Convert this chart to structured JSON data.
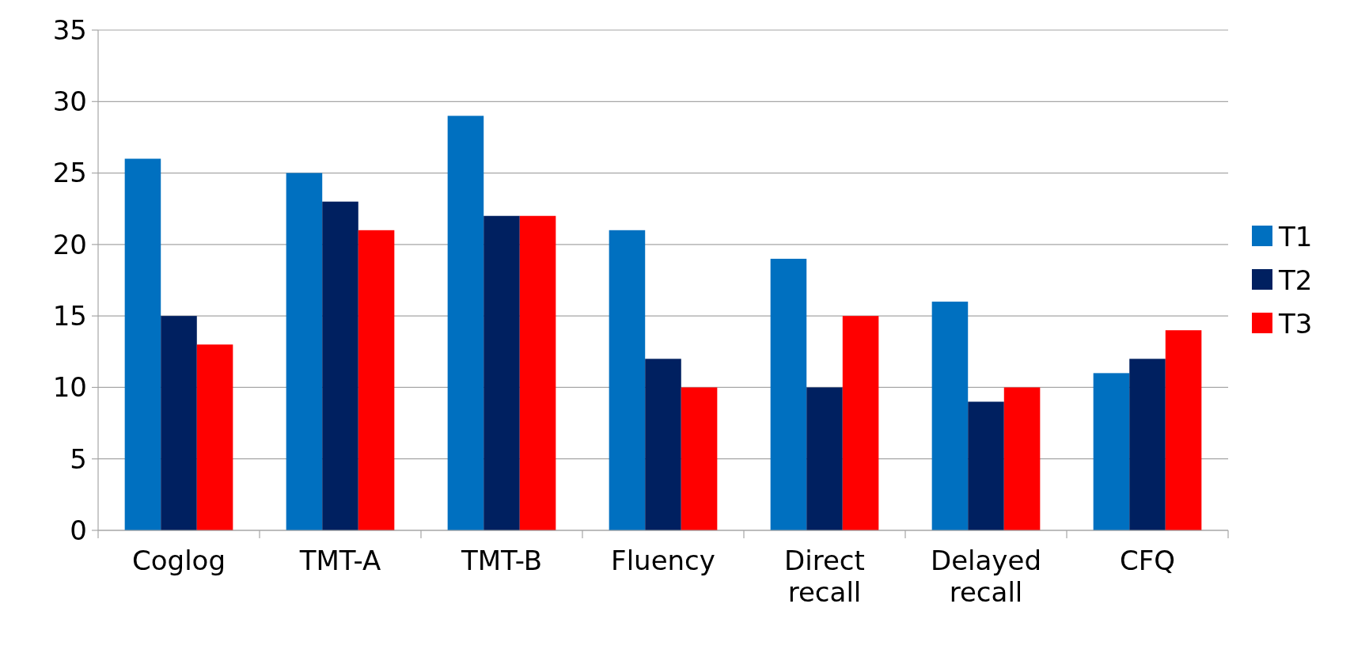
{
  "chart_data": {
    "type": "bar",
    "categories": [
      "Coglog",
      "TMT-A",
      "TMT-B",
      "Fluency",
      "Direct recall",
      "Delayed recall",
      "CFQ"
    ],
    "series": [
      {
        "name": "T1",
        "color": "#0070c0",
        "values": [
          26,
          25,
          29,
          21,
          19,
          16,
          11
        ]
      },
      {
        "name": "T2",
        "color": "#002060",
        "values": [
          15,
          23,
          22,
          12,
          10,
          9,
          12
        ]
      },
      {
        "name": "T3",
        "color": "#ff0000",
        "values": [
          13,
          21,
          22,
          10,
          15,
          10,
          14
        ]
      }
    ],
    "ylim": [
      0,
      35
    ],
    "yticks": [
      0,
      5,
      10,
      15,
      20,
      25,
      30,
      35
    ],
    "grid": "y",
    "legend": "right"
  }
}
